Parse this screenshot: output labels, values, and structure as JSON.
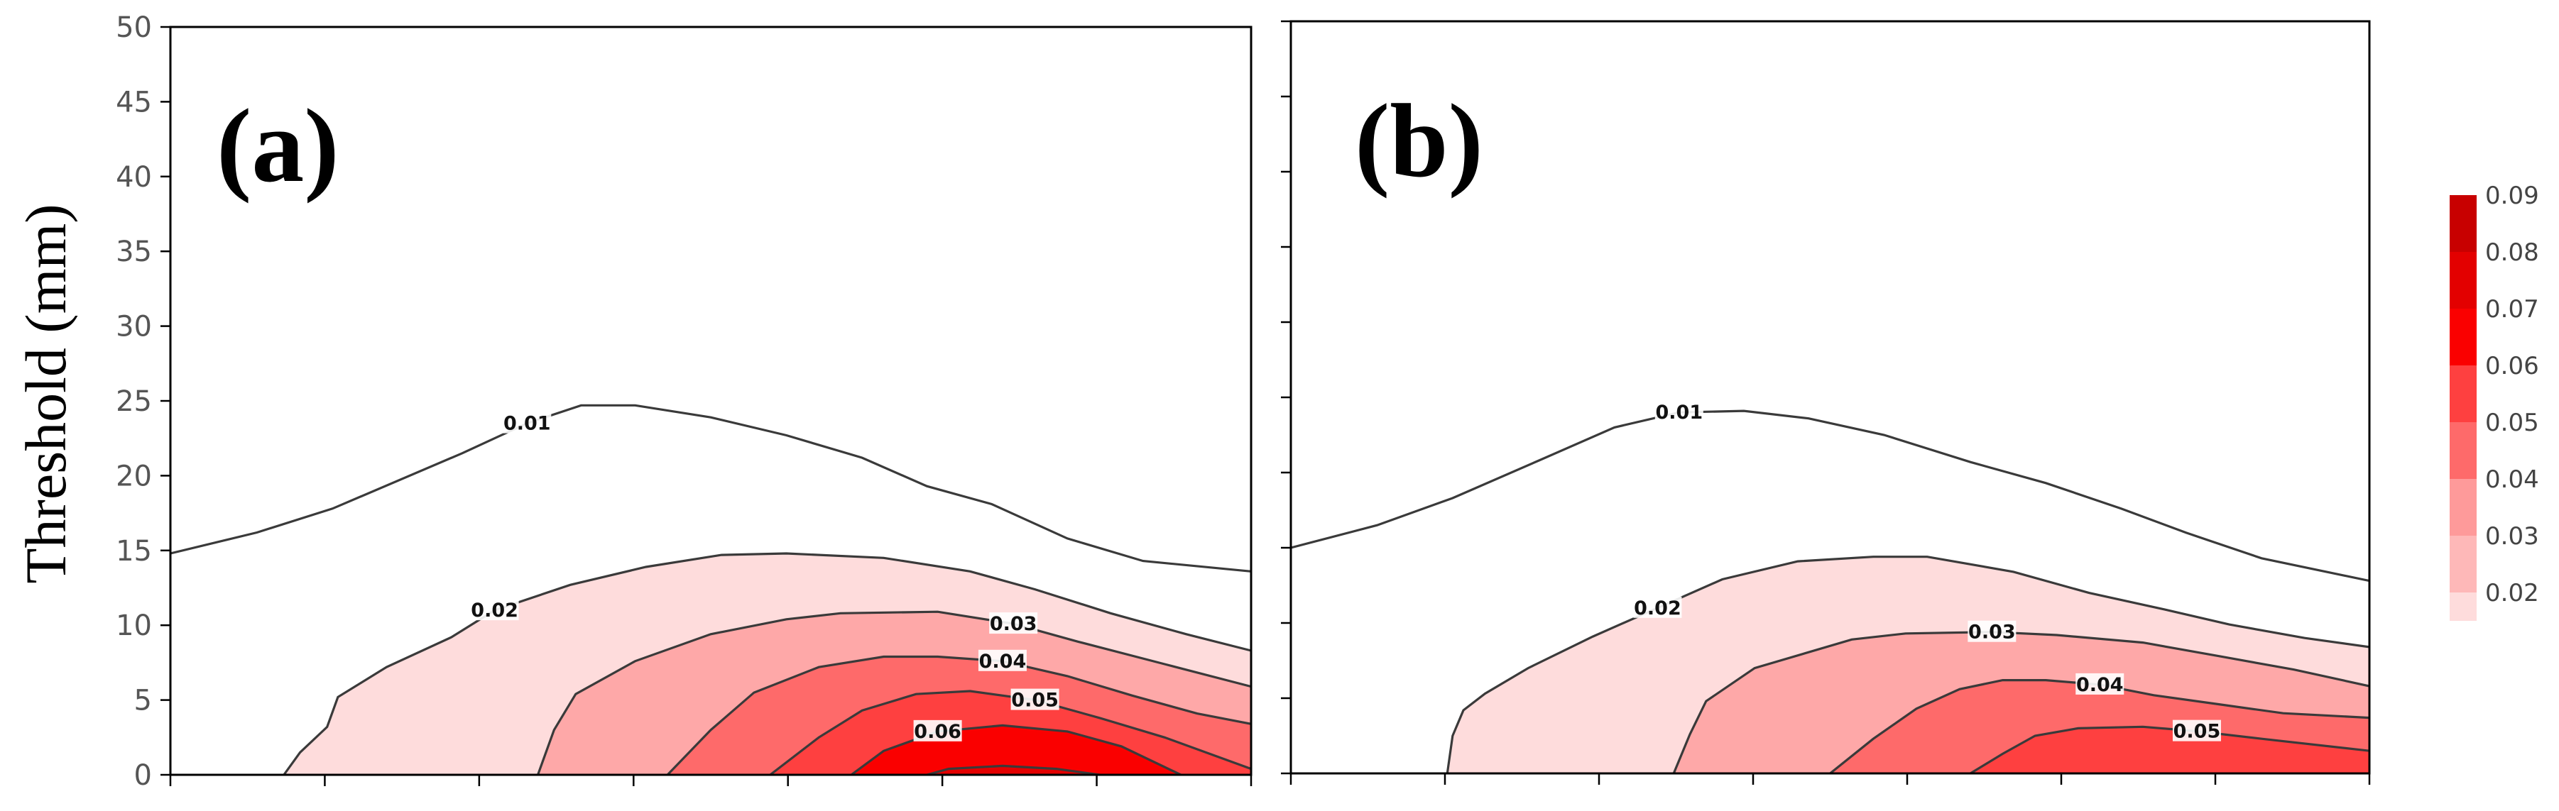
{
  "chart_data": [
    {
      "type": "heatmap",
      "panel_label": "(a)",
      "ylabel": "Threshold (mm)",
      "ylim": [
        0,
        50
      ],
      "yticks": [
        0,
        5,
        10,
        15,
        20,
        25,
        30,
        35,
        40,
        45,
        50
      ],
      "x_tick_count": 8,
      "contours": [
        {
          "level": 0.01,
          "label": "0.01",
          "label_index": 4,
          "points": [
            [
              0,
              14.8
            ],
            [
              0.08,
              16.2
            ],
            [
              0.15,
              17.8
            ],
            [
              0.27,
              21.5
            ],
            [
              0.33,
              23.5
            ],
            [
              0.38,
              24.7
            ],
            [
              0.43,
              24.7
            ],
            [
              0.5,
              23.9
            ],
            [
              0.57,
              22.7
            ],
            [
              0.64,
              21.2
            ],
            [
              0.7,
              19.3
            ],
            [
              0.76,
              18.1
            ],
            [
              0.83,
              15.8
            ],
            [
              0.9,
              14.3
            ],
            [
              1.0,
              13.6
            ]
          ]
        },
        {
          "level": 0.02,
          "label": "0.02",
          "label_index": 6,
          "points": [
            [
              0.105,
              0
            ],
            [
              0.12,
              1.5
            ],
            [
              0.145,
              3.2
            ],
            [
              0.155,
              5.2
            ],
            [
              0.2,
              7.2
            ],
            [
              0.26,
              9.2
            ],
            [
              0.3,
              11.0
            ],
            [
              0.37,
              12.7
            ],
            [
              0.44,
              13.9
            ],
            [
              0.51,
              14.7
            ],
            [
              0.57,
              14.8
            ],
            [
              0.66,
              14.5
            ],
            [
              0.74,
              13.6
            ],
            [
              0.8,
              12.4
            ],
            [
              0.87,
              10.8
            ],
            [
              0.94,
              9.4
            ],
            [
              1.0,
              8.3
            ]
          ]
        },
        {
          "level": 0.03,
          "label": "0.03",
          "label_index": 8,
          "points": [
            [
              0.34,
              0
            ],
            [
              0.355,
              3.0
            ],
            [
              0.375,
              5.4
            ],
            [
              0.43,
              7.6
            ],
            [
              0.5,
              9.4
            ],
            [
              0.57,
              10.4
            ],
            [
              0.62,
              10.8
            ],
            [
              0.71,
              10.9
            ],
            [
              0.78,
              10.1
            ],
            [
              0.84,
              8.9
            ],
            [
              0.92,
              7.4
            ],
            [
              1.0,
              5.9
            ]
          ]
        },
        {
          "level": 0.04,
          "label": "0.04",
          "label_index": 6,
          "points": [
            [
              0.46,
              0
            ],
            [
              0.5,
              3.0
            ],
            [
              0.54,
              5.5
            ],
            [
              0.6,
              7.2
            ],
            [
              0.66,
              7.9
            ],
            [
              0.71,
              7.9
            ],
            [
              0.77,
              7.6
            ],
            [
              0.83,
              6.6
            ],
            [
              0.89,
              5.3
            ],
            [
              0.95,
              4.1
            ],
            [
              1.0,
              3.4
            ]
          ]
        },
        {
          "level": 0.05,
          "label": "0.05",
          "label_index": 5,
          "points": [
            [
              0.555,
              0
            ],
            [
              0.6,
              2.5
            ],
            [
              0.64,
              4.3
            ],
            [
              0.69,
              5.4
            ],
            [
              0.74,
              5.6
            ],
            [
              0.8,
              5.0
            ],
            [
              0.86,
              3.8
            ],
            [
              0.92,
              2.5
            ],
            [
              1.0,
              0.4
            ]
          ]
        },
        {
          "level": 0.06,
          "label": "0.06",
          "label_index": 2,
          "points": [
            [
              0.63,
              0
            ],
            [
              0.66,
              1.6
            ],
            [
              0.71,
              2.9
            ],
            [
              0.77,
              3.3
            ],
            [
              0.83,
              2.9
            ],
            [
              0.88,
              1.9
            ],
            [
              0.935,
              0
            ]
          ]
        },
        {
          "level": 0.07,
          "label": "",
          "label_index": -1,
          "points": [
            [
              0.7,
              0
            ],
            [
              0.72,
              0.4
            ],
            [
              0.77,
              0.6
            ],
            [
              0.82,
              0.4
            ],
            [
              0.86,
              0
            ]
          ]
        }
      ]
    },
    {
      "type": "heatmap",
      "panel_label": "(b)",
      "ylabel": "",
      "ylim": [
        0,
        50
      ],
      "yticks": [
        0,
        5,
        10,
        15,
        20,
        25,
        30,
        35,
        40,
        45,
        50
      ],
      "x_tick_count": 8,
      "contours": [
        {
          "level": 0.01,
          "label": "0.01",
          "label_index": 5,
          "points": [
            [
              0,
              15.0
            ],
            [
              0.08,
              16.5
            ],
            [
              0.15,
              18.3
            ],
            [
              0.23,
              20.8
            ],
            [
              0.3,
              23.0
            ],
            [
              0.36,
              24.0
            ],
            [
              0.42,
              24.1
            ],
            [
              0.48,
              23.6
            ],
            [
              0.55,
              22.5
            ],
            [
              0.63,
              20.7
            ],
            [
              0.7,
              19.3
            ],
            [
              0.77,
              17.6
            ],
            [
              0.83,
              16.0
            ],
            [
              0.9,
              14.3
            ],
            [
              1.0,
              12.8
            ]
          ]
        },
        {
          "level": 0.02,
          "label": "0.02",
          "label_index": 6,
          "points": [
            [
              0.145,
              0
            ],
            [
              0.15,
              2.5
            ],
            [
              0.16,
              4.2
            ],
            [
              0.18,
              5.3
            ],
            [
              0.22,
              7.0
            ],
            [
              0.28,
              9.1
            ],
            [
              0.34,
              11.0
            ],
            [
              0.4,
              12.9
            ],
            [
              0.47,
              14.1
            ],
            [
              0.54,
              14.4
            ],
            [
              0.59,
              14.4
            ],
            [
              0.67,
              13.4
            ],
            [
              0.74,
              12.0
            ],
            [
              0.81,
              10.9
            ],
            [
              0.87,
              9.9
            ],
            [
              0.94,
              9.0
            ],
            [
              1.0,
              8.4
            ]
          ]
        },
        {
          "level": 0.03,
          "label": "0.03",
          "label_index": 6,
          "points": [
            [
              0.355,
              0
            ],
            [
              0.37,
              2.6
            ],
            [
              0.385,
              4.8
            ],
            [
              0.43,
              7.0
            ],
            [
              0.52,
              8.9
            ],
            [
              0.57,
              9.3
            ],
            [
              0.65,
              9.4
            ],
            [
              0.71,
              9.2
            ],
            [
              0.79,
              8.7
            ],
            [
              0.86,
              7.8
            ],
            [
              0.93,
              6.9
            ],
            [
              1.0,
              5.8
            ]
          ]
        },
        {
          "level": 0.04,
          "label": "0.04",
          "label_index": 6,
          "points": [
            [
              0.5,
              0
            ],
            [
              0.54,
              2.3
            ],
            [
              0.58,
              4.3
            ],
            [
              0.62,
              5.6
            ],
            [
              0.66,
              6.2
            ],
            [
              0.7,
              6.2
            ],
            [
              0.75,
              5.9
            ],
            [
              0.8,
              5.2
            ],
            [
              0.86,
              4.6
            ],
            [
              0.92,
              4.0
            ],
            [
              1.0,
              3.7
            ]
          ]
        },
        {
          "level": 0.05,
          "label": "0.05",
          "label_index": 5,
          "points": [
            [
              0.63,
              0
            ],
            [
              0.66,
              1.3
            ],
            [
              0.69,
              2.5
            ],
            [
              0.73,
              3.0
            ],
            [
              0.79,
              3.1
            ],
            [
              0.84,
              2.8
            ],
            [
              0.9,
              2.3
            ],
            [
              1.0,
              1.5
            ]
          ]
        }
      ]
    }
  ],
  "colorbar": {
    "ticks": [
      "0.09",
      "0.08",
      "0.07",
      "0.06",
      "0.05",
      "0.04",
      "0.03",
      "0.02"
    ],
    "colors": [
      "#c80000",
      "#e30000",
      "#fa0000",
      "#fe4040",
      "#fe6a6a",
      "#fe9a9a",
      "#feb8b8",
      "#fedcdc"
    ]
  },
  "colors": {
    "fill_levels": [
      "#fedcdc",
      "#fea8a8",
      "#fe6a6a",
      "#fe4040",
      "#fa0000",
      "#e30000"
    ],
    "contour_line": "#3a3a3a"
  }
}
